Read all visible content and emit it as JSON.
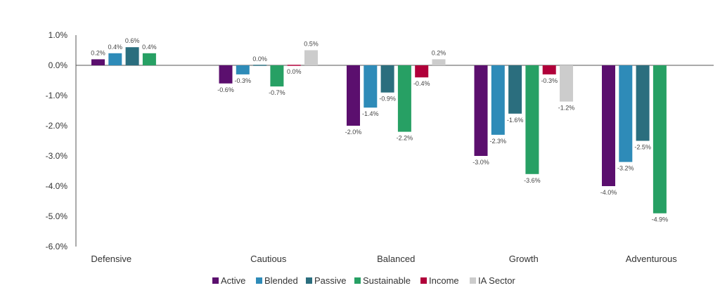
{
  "chart_data": {
    "type": "bar",
    "title": "",
    "xlabel": "",
    "ylabel": "",
    "categories": [
      "Defensive",
      "Cautious",
      "Balanced",
      "Growth",
      "Adventurous"
    ],
    "ylim": [
      -6.0,
      1.0
    ],
    "yticks": [
      1.0,
      0.0,
      -1.0,
      -2.0,
      -3.0,
      -4.0,
      -5.0,
      -6.0
    ],
    "ytick_labels": [
      "1.0%",
      "0.0%",
      "-1.0%",
      "-2.0%",
      "-3.0%",
      "-4.0%",
      "-5.0%",
      "-6.0%"
    ],
    "grid": false,
    "legend_position": "bottom",
    "series": [
      {
        "name": "Active",
        "color": "#5b0f6e",
        "values": [
          0.2,
          -0.6,
          -2.0,
          -3.0,
          -4.0
        ],
        "labels": [
          "0.2%",
          "-0.6%",
          "-2.0%",
          "-3.0%",
          "-4.0%"
        ]
      },
      {
        "name": "Blended",
        "color": "#2e8bb8",
        "values": [
          0.4,
          -0.3,
          -1.4,
          -2.3,
          -3.2
        ],
        "labels": [
          "0.4%",
          "-0.3%",
          "-1.4%",
          "-2.3%",
          "-3.2%"
        ]
      },
      {
        "name": "Passive",
        "color": "#2b6e7e",
        "values": [
          0.6,
          0.0,
          -0.9,
          -1.6,
          -2.5
        ],
        "labels": [
          "0.6%",
          "0.0%",
          "-0.9%",
          "-1.6%",
          "-2.5%"
        ]
      },
      {
        "name": "Sustainable",
        "color": "#27a064",
        "values": [
          0.4,
          -0.7,
          -2.2,
          -3.6,
          -4.9
        ],
        "labels": [
          "0.4%",
          "-0.7%",
          "-2.2%",
          "-3.6%",
          "-4.9%"
        ]
      },
      {
        "name": "Income",
        "color": "#b0003a",
        "values": [
          null,
          0.0,
          -0.4,
          -0.3,
          null
        ],
        "labels": [
          null,
          "0.0%",
          "-0.4%",
          "-0.3%",
          null
        ]
      },
      {
        "name": "IA Sector",
        "color": "#cccccc",
        "values": [
          null,
          0.5,
          0.2,
          -1.2,
          null
        ],
        "labels": [
          null,
          "0.5%",
          "0.2%",
          "-1.2%",
          null
        ]
      }
    ]
  }
}
